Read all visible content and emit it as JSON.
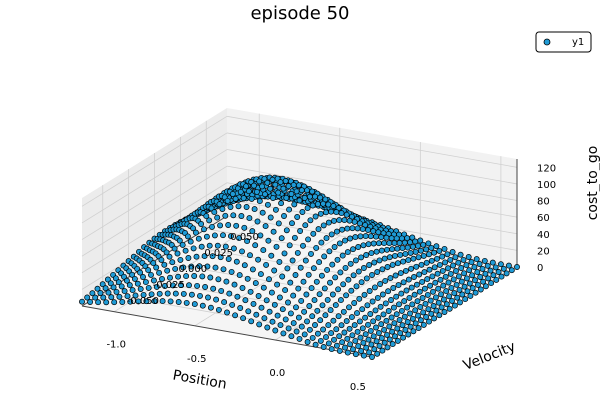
{
  "chart_data": {
    "type": "scatter3d",
    "title": "episode 50",
    "xlabel": "Position",
    "ylabel": "Velocity",
    "zlabel": "cost_to_go",
    "xlim": [
      -1.2,
      0.6
    ],
    "ylim": [
      -0.07,
      0.07
    ],
    "zlim": [
      0,
      130
    ],
    "x_ticks": [
      -1.0,
      -0.5,
      0.0,
      0.5
    ],
    "x_tick_labels": [
      "-1.0",
      "-0.5",
      "0.0",
      "0.5"
    ],
    "y_ticks": [
      -0.05,
      -0.025,
      0.0,
      0.025,
      0.05
    ],
    "y_tick_labels": [
      "-0.050",
      "-0.025",
      "0.000",
      "0.025",
      "0.050"
    ],
    "z_ticks": [
      0,
      20,
      40,
      60,
      80,
      100,
      120
    ],
    "z_tick_labels": [
      "0",
      "20",
      "40",
      "60",
      "80",
      "100",
      "120"
    ],
    "grid": true,
    "legend_position": "top-right",
    "marker_color": "#1f9bd6",
    "marker_edge": "#000000",
    "series": [
      {
        "name": "y1",
        "grid_positions": {
          "x_start": -1.2,
          "x_end": 0.6,
          "x_count": 37
        },
        "grid_velocities": {
          "y_start": -0.07,
          "y_end": 0.07,
          "y_count": 29
        },
        "surface_profile": {
          "peak_value": 118,
          "peak_position": -0.5,
          "peak_velocity": 0.0,
          "ridge_value": 65,
          "goal_position": 0.5
        }
      }
    ]
  }
}
